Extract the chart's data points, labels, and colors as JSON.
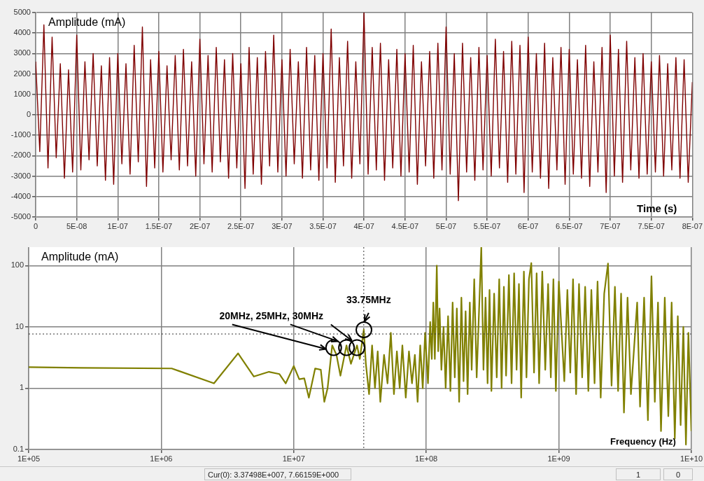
{
  "chart_data": [
    {
      "type": "line",
      "xlabel": "Time (s)",
      "ylabel": "Amplitude (mA)",
      "grid": true,
      "xlim": [
        0,
        8e-07
      ],
      "xticks": [
        0,
        {
          "value": 5e-08,
          "label": "5E-08"
        },
        {
          "value": 1e-07,
          "label": "1E-07"
        },
        {
          "value": 1.5e-07,
          "label": "1.5E-07"
        },
        {
          "value": 2e-07,
          "label": "2E-07"
        },
        {
          "value": 2.5e-07,
          "label": "2.5E-07"
        },
        {
          "value": 3e-07,
          "label": "3E-07"
        },
        {
          "value": 3.5e-07,
          "label": "3.5E-07"
        },
        {
          "value": 4e-07,
          "label": "4E-07"
        },
        {
          "value": 4.5e-07,
          "label": "4.5E-07"
        },
        {
          "value": 5e-07,
          "label": "5E-07"
        },
        {
          "value": 5.5e-07,
          "label": "5.5E-07"
        },
        {
          "value": 6e-07,
          "label": "6E-07"
        },
        {
          "value": 6.5e-07,
          "label": "6.5E-07"
        },
        {
          "value": 7e-07,
          "label": "7E-07"
        },
        {
          "value": 7.5e-07,
          "label": "7.5E-07"
        },
        {
          "value": 8e-07,
          "label": "8E-07"
        }
      ],
      "ylim": [
        -5000,
        5000
      ],
      "yticks": [
        -5000,
        -4000,
        -3000,
        -2000,
        -1000,
        0,
        1000,
        2000,
        3000,
        4000,
        5000
      ],
      "series": [
        {
          "color": "#7f0000",
          "x": [
            0,
            5e-09,
            1e-08,
            1.5e-08,
            2e-08,
            2.5e-08,
            3e-08,
            3.5e-08,
            4e-08,
            4.5e-08,
            5e-08,
            5.5e-08,
            6e-08,
            6.5e-08,
            7e-08,
            7.5e-08,
            8e-08,
            8.5e-08,
            9e-08,
            9.5e-08,
            1e-07,
            1.05e-07,
            1.1e-07,
            1.15e-07,
            1.2e-07,
            1.25e-07,
            1.3e-07,
            1.35e-07,
            1.4e-07,
            1.45e-07,
            1.5e-07,
            1.55e-07,
            1.6e-07,
            1.65e-07,
            1.7e-07,
            1.75e-07,
            1.8e-07,
            1.85e-07,
            1.9e-07,
            1.95e-07,
            2e-07,
            2.05e-07,
            2.1e-07,
            2.15e-07,
            2.2e-07,
            2.25e-07,
            2.3e-07,
            2.35e-07,
            2.4e-07,
            2.45e-07,
            2.5e-07,
            2.55e-07,
            2.6e-07,
            2.65e-07,
            2.7e-07,
            2.75e-07,
            2.8e-07,
            2.85e-07,
            2.9e-07,
            2.95e-07,
            3e-07,
            3.05e-07,
            3.1e-07,
            3.15e-07,
            3.2e-07,
            3.25e-07,
            3.3e-07,
            3.35e-07,
            3.4e-07,
            3.45e-07,
            3.5e-07,
            3.55e-07,
            3.6e-07,
            3.65e-07,
            3.7e-07,
            3.75e-07,
            3.8e-07,
            3.85e-07,
            3.9e-07,
            3.95e-07,
            4e-07,
            4.05e-07,
            4.1e-07,
            4.15e-07,
            4.2e-07,
            4.25e-07,
            4.3e-07,
            4.35e-07,
            4.4e-07,
            4.45e-07,
            4.5e-07,
            4.55e-07,
            4.6e-07,
            4.65e-07,
            4.7e-07,
            4.75e-07,
            4.8e-07,
            4.85e-07,
            4.9e-07,
            4.95e-07,
            5e-07,
            5.05e-07,
            5.1e-07,
            5.15e-07,
            5.2e-07,
            5.25e-07,
            5.3e-07,
            5.35e-07,
            5.4e-07,
            5.45e-07,
            5.5e-07,
            5.55e-07,
            5.6e-07,
            5.65e-07,
            5.7e-07,
            5.75e-07,
            5.8e-07,
            5.85e-07,
            5.9e-07,
            5.95e-07,
            6e-07,
            6.05e-07,
            6.1e-07,
            6.15e-07,
            6.2e-07,
            6.25e-07,
            6.3e-07,
            6.35e-07,
            6.4e-07,
            6.45e-07,
            6.5e-07,
            6.55e-07,
            6.6e-07,
            6.65e-07,
            6.7e-07,
            6.75e-07,
            6.8e-07,
            6.85e-07,
            6.9e-07,
            6.95e-07,
            7e-07,
            7.05e-07,
            7.1e-07,
            7.15e-07,
            7.2e-07,
            7.25e-07,
            7.3e-07,
            7.35e-07,
            7.4e-07,
            7.45e-07,
            7.5e-07,
            7.55e-07,
            7.6e-07,
            7.65e-07,
            7.7e-07,
            7.75e-07,
            7.8e-07,
            7.85e-07,
            7.9e-07,
            7.95e-07,
            8e-07
          ],
          "values": [
            2600,
            -1800,
            4400,
            -2600,
            3800,
            -2100,
            2500,
            -3100,
            2200,
            -2800,
            3900,
            -2700,
            2600,
            -2200,
            3000,
            -2500,
            2400,
            -3200,
            2800,
            -3400,
            3000,
            -2400,
            2500,
            -2900,
            3400,
            -2300,
            4300,
            -3500,
            2700,
            -2600,
            3100,
            -2800,
            2400,
            -2200,
            2900,
            -2700,
            3200,
            -2500,
            2600,
            -3000,
            3700,
            -2400,
            2900,
            -2800,
            3300,
            -2300,
            2700,
            -3100,
            3000,
            -2600,
            2500,
            -3600,
            3300,
            -2900,
            2800,
            -3400,
            3100,
            -2500,
            3900,
            -2800,
            2700,
            -3000,
            3200,
            -2400,
            2600,
            -3100,
            3300,
            -2700,
            2900,
            -3200,
            3000,
            -2600,
            4200,
            -3300,
            2800,
            -2500,
            3600,
            -3100,
            2600,
            -2400,
            5000,
            -2900,
            3300,
            -2700,
            3500,
            -3200,
            2700,
            -2600,
            3200,
            -3000,
            3000,
            -2800,
            3400,
            -3400,
            2600,
            -2500,
            3100,
            -3100,
            3500,
            -2700,
            4300,
            -2900,
            3000,
            -4200,
            3500,
            -2800,
            2800,
            -3200,
            3300,
            -2700,
            2900,
            -3000,
            3700,
            -2600,
            3100,
            -3300,
            3600,
            -2900,
            3400,
            -3800,
            3800,
            -2800,
            3000,
            -3100,
            3500,
            -3600,
            2800,
            -2700,
            3300,
            -3400,
            3200,
            -2900,
            2700,
            -3100,
            3400,
            -3500,
            2600,
            -2800,
            3300,
            -3800,
            3900,
            -3000,
            3200,
            -3300,
            3600,
            -2700,
            2800,
            -3100,
            3000,
            -2900,
            2600,
            -2800,
            2900,
            -3000,
            2500,
            -2700,
            2800,
            -3100,
            2700,
            -3300,
            1600
          ]
        }
      ]
    },
    {
      "type": "line",
      "xlabel": "Frequency (Hz)",
      "ylabel": "Amplitude (mA)",
      "grid": true,
      "log": "xy",
      "xlim": [
        100000.0,
        10000000000.0
      ],
      "xticks": [
        {
          "value": 100000.0,
          "label": "1E+05"
        },
        {
          "value": 1000000.0,
          "label": "1E+06"
        },
        {
          "value": 10000000.0,
          "label": "1E+07"
        },
        {
          "value": 100000000.0,
          "label": "1E+08"
        },
        {
          "value": 1000000000.0,
          "label": "1E+09"
        },
        {
          "value": 10000000000.0,
          "label": "1E+10"
        }
      ],
      "ylim": [
        0.1,
        200
      ],
      "yticks": [
        0.1,
        1,
        10,
        100
      ],
      "ref_lines": [
        {
          "axis": "x",
          "value": 33749800.0,
          "line_style": "dotted",
          "color": "#333333"
        },
        {
          "axis": "y",
          "value": 7.66159,
          "line_style": "dotted",
          "color": "#333333"
        }
      ],
      "annotations": [
        {
          "text": "20MHz, 25MHz, 30MHz",
          "x": 20000000.0,
          "y": 4.6
        },
        {
          "text": "33.75MHz",
          "x": 33750000.0,
          "y": 10
        },
        "Cur(0): 3.37498E+007, 7.66159E+000",
        "1",
        "0"
      ],
      "series": [
        {
          "type": "scatter",
          "color": "#000000",
          "x": [
            20000000.0,
            25000000.0,
            30000000.0
          ],
          "values": [
            4.6,
            4.6,
            4.6
          ]
        },
        {
          "color": "#808000",
          "x": [
            100000.0,
            250000.0,
            1200000.0,
            2500000.0,
            3800000.0,
            5000000.0,
            6500000.0,
            7800000.0,
            8700000.0,
            10000000.0,
            11000000.0,
            12000000.0,
            13000000.0,
            14500000.0,
            16000000.0,
            17000000.0,
            18000000.0,
            19500000.0,
            21000000.0,
            22500000.0,
            25000000.0,
            27000000.0,
            30000000.0,
            31500000.0,
            33750000.0,
            35000000.0,
            37000000.0,
            39000000.0,
            41000000.0,
            43000000.0,
            45000000.0,
            48000000.0,
            51000000.0,
            54000000.0,
            57000000.0,
            60000000.0,
            63000000.0,
            66000000.0,
            70000000.0,
            74000000.0,
            78000000.0,
            82000000.0,
            86000000.0,
            90000000.0,
            94000000.0,
            98000000.0,
            103000000.0,
            107000000.0,
            110000000.0,
            113000000.0,
            116000000.0,
            120000000.0,
            123000000.0,
            126000000.0,
            130000000.0,
            135000000.0,
            140000000.0,
            146000000.0,
            152000000.0,
            158000000.0,
            164000000.0,
            170000000.0,
            177000000.0,
            184000000.0,
            191000000.0,
            198000000.0,
            205000000.0,
            213000000.0,
            220000000.0,
            230000000.0,
            240000000.0,
            260000000.0,
            270000000.0,
            280000000.0,
            290000000.0,
            300000000.0,
            310000000.0,
            325000000.0,
            340000000.0,
            355000000.0,
            370000000.0,
            385000000.0,
            400000000.0,
            420000000.0,
            440000000.0,
            460000000.0,
            480000000.0,
            500000000.0,
            520000000.0,
            545000000.0,
            570000000.0,
            595000000.0,
            620000000.0,
            650000000.0,
            680000000.0,
            710000000.0,
            750000000.0,
            790000000.0,
            830000000.0,
            870000000.0,
            910000000.0,
            950000000.0,
            1000000000.0,
            1100000000.0,
            1160000000.0,
            1220000000.0,
            1280000000.0,
            1350000000.0,
            1420000000.0,
            1500000000.0,
            1580000000.0,
            1670000000.0,
            1760000000.0,
            1860000000.0,
            1960000000.0,
            2070000000.0,
            2200000000.0,
            2350000000.0,
            2500000000.0,
            2650000000.0,
            2800000000.0,
            2950000000.0,
            3100000000.0,
            3300000000.0,
            3500000000.0,
            3900000000.0,
            4100000000.0,
            4400000000.0,
            4700000000.0,
            5000000000.0,
            5300000000.0,
            5600000000.0,
            5900000000.0,
            6300000000.0,
            6700000000.0,
            7100000000.0,
            7500000000.0,
            7900000000.0,
            8300000000.0,
            8700000000.0,
            9100000000.0,
            9500000000.0,
            10000000000.0
          ],
          "values": [
            2.2,
            2.15,
            2.1,
            1.2,
            3.7,
            1.55,
            1.85,
            1.7,
            1.2,
            2.3,
            1.4,
            1.45,
            0.7,
            2.1,
            2,
            0.6,
            1,
            5,
            3.5,
            1.6,
            5,
            2.5,
            5,
            3,
            9,
            2.5,
            0.8,
            5,
            1,
            4,
            0.6,
            3.5,
            1.2,
            8,
            0.8,
            4,
            1,
            5,
            0.7,
            4,
            1.2,
            3.5,
            0.6,
            5,
            1,
            8,
            1.2,
            12,
            3,
            25,
            3,
            100,
            4,
            20,
            2,
            10,
            1,
            15,
            0.9,
            25,
            1.5,
            20,
            0.6,
            30,
            1.3,
            18,
            0.8,
            25,
            2,
            60,
            1.5,
            200,
            2,
            30,
            1.2,
            40,
            0.9,
            35,
            1.5,
            60,
            1,
            45,
            1.6,
            70,
            1.2,
            75,
            2,
            50,
            0.7,
            80,
            1.5,
            60,
            110,
            1.8,
            75,
            1.2,
            80,
            2,
            50,
            1.5,
            60,
            0.9,
            55,
            1.3,
            40,
            1.8,
            60,
            0.8,
            50,
            1.5,
            45,
            0.9,
            40,
            1.2,
            55,
            0.7,
            35,
            108,
            1.1,
            45,
            0.9,
            35,
            0.4,
            30,
            0.8,
            25,
            0.5,
            30,
            0.3,
            67,
            0.6,
            25,
            0.2,
            30,
            0.35,
            25,
            0.15,
            15,
            0.25,
            10,
            0.12,
            8,
            0.2
          ]
        }
      ]
    }
  ]
}
